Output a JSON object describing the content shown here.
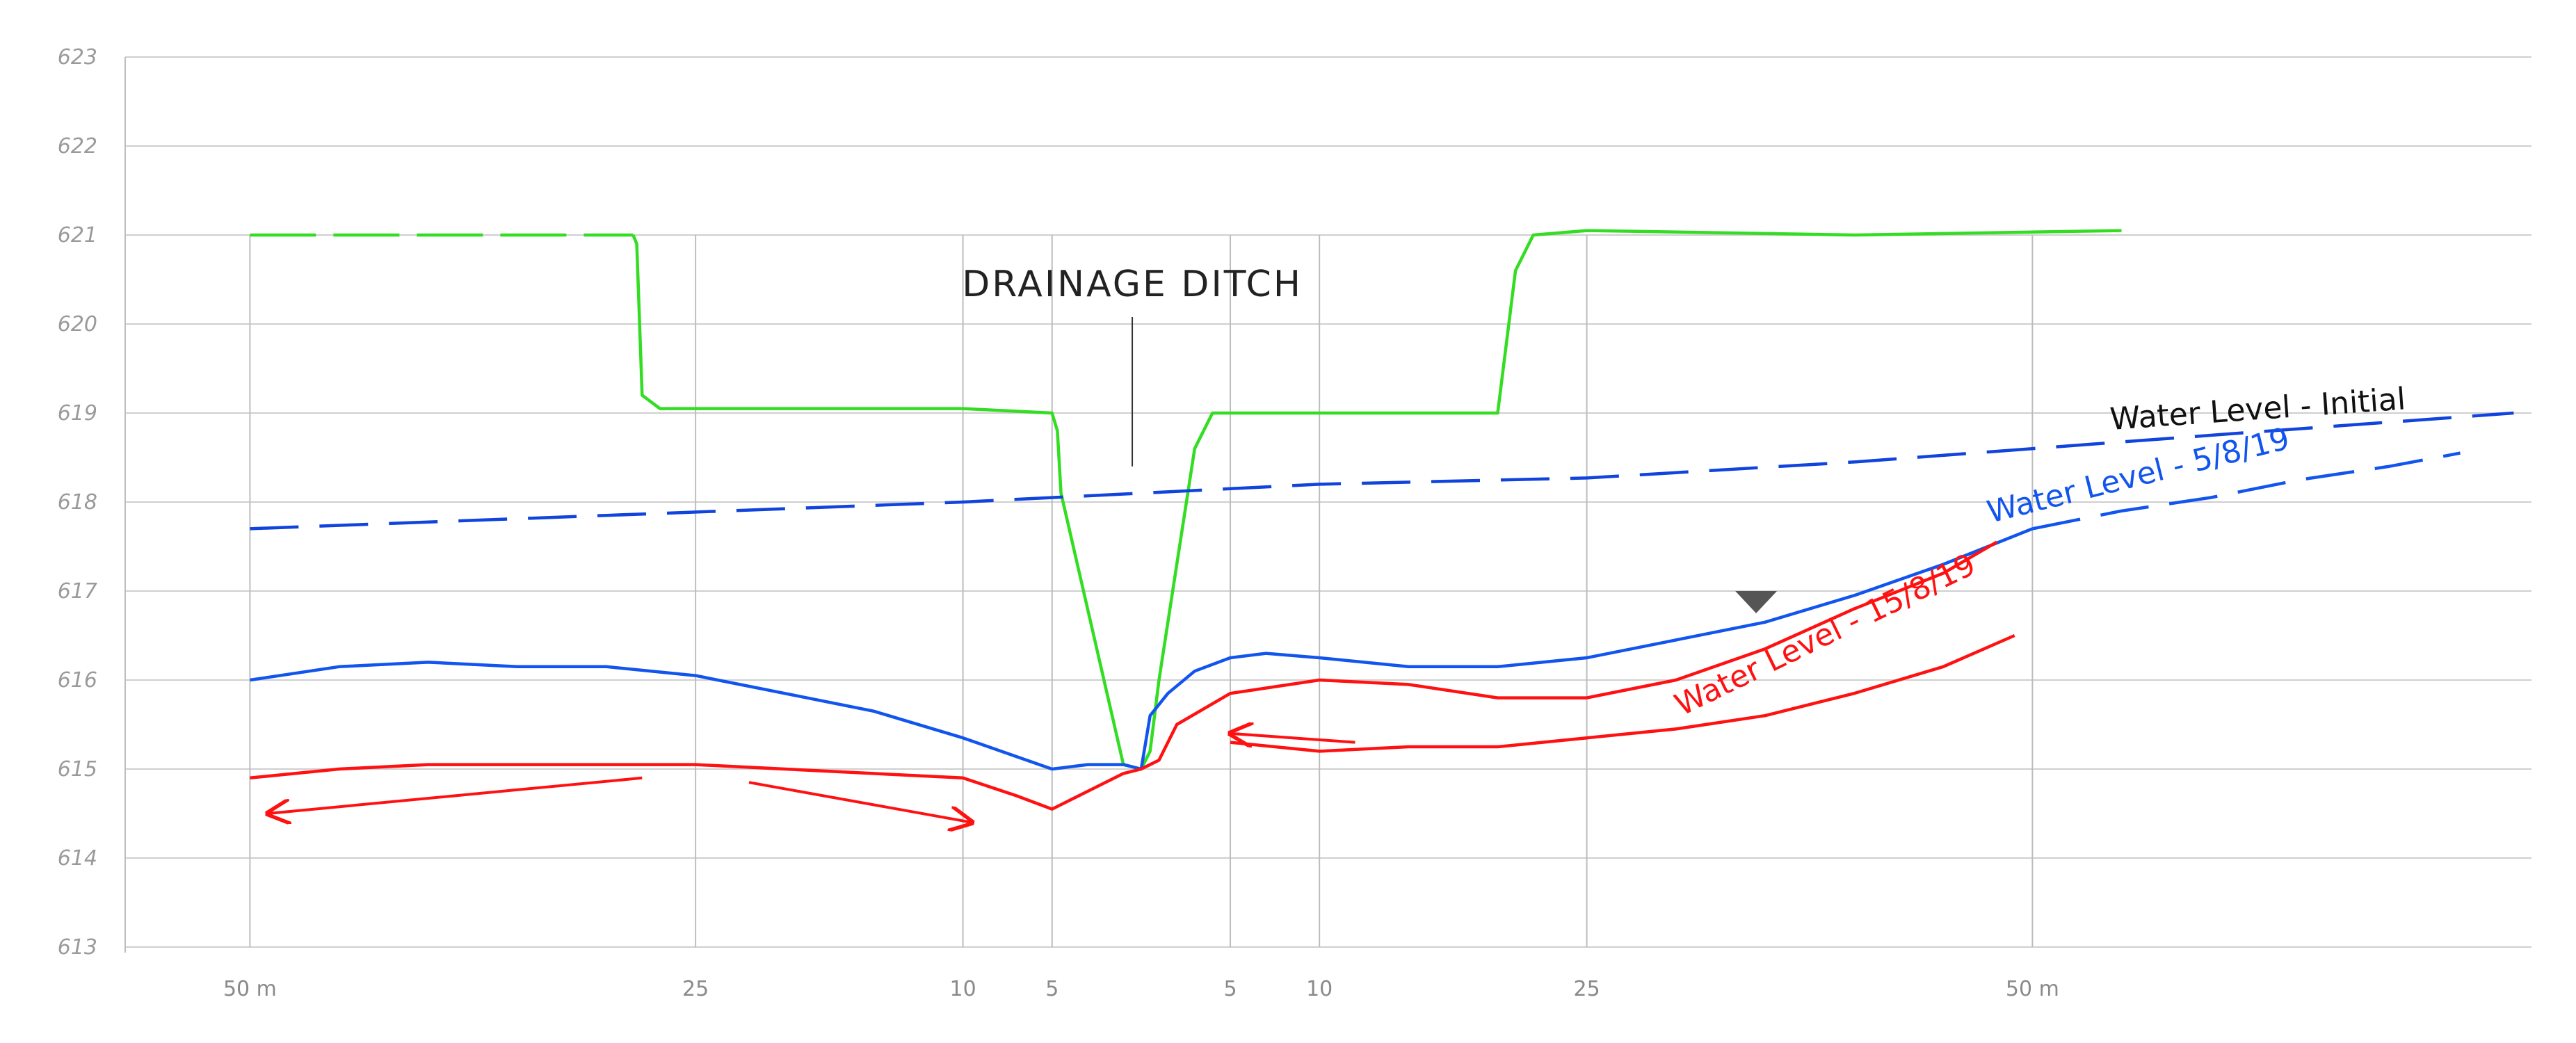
{
  "chart_data": {
    "type": "line",
    "title": "",
    "ylim": [
      613,
      623
    ],
    "y_ticks": [
      "613",
      "614",
      "615",
      "616",
      "617",
      "618",
      "619",
      "620",
      "621",
      "622",
      "623"
    ],
    "x_ticks": [
      {
        "label": "50 m",
        "pos": -50
      },
      {
        "label": "25",
        "pos": -25
      },
      {
        "label": "10",
        "pos": -10
      },
      {
        "label": "5",
        "pos": -5
      },
      {
        "label": "5",
        "pos": 5
      },
      {
        "label": "10",
        "pos": 10
      },
      {
        "label": "25",
        "pos": 25
      },
      {
        "label": "50 m",
        "pos": 50
      }
    ],
    "xlim": [
      -57,
      78
    ],
    "grid": true,
    "ditch_annotation": {
      "label": "DRAINAGE DITCH",
      "x": -0.5,
      "y_top": 620.0,
      "y_bottom": 618.4
    },
    "colors": {
      "ground": "#33dd22",
      "water_initial": "#1144dd",
      "water_5_8": "#1155ee",
      "water_15_8": "#ff1111",
      "marker": "#555555"
    },
    "series": [
      {
        "key": "ground",
        "color": "#33dd22",
        "dash": "long-dash-then-solid",
        "x": [
          -50,
          -28.5,
          -28.3,
          -28,
          -27,
          -20,
          -10,
          -5,
          -4.7,
          -4.5,
          -1,
          0,
          0.5,
          1,
          2,
          3,
          4,
          10,
          20,
          21,
          22,
          25,
          40,
          55
        ],
        "y": [
          621.0,
          621.0,
          620.9,
          619.2,
          619.05,
          619.05,
          619.05,
          619.0,
          618.8,
          618.1,
          615.05,
          615.0,
          615.2,
          616.0,
          617.3,
          618.6,
          619.0,
          619.0,
          619.0,
          620.6,
          621.0,
          621.05,
          621.0,
          621.05
        ]
      },
      {
        "key": "water_initial",
        "color": "#1144dd",
        "dash": "dashed",
        "label": "Water Level - Initial",
        "x": [
          -50,
          -30,
          -10,
          0,
          10,
          25,
          40,
          60,
          77
        ],
        "y": [
          617.7,
          617.85,
          618.0,
          618.1,
          618.2,
          618.27,
          618.45,
          618.75,
          619.0
        ]
      },
      {
        "key": "water_5_8",
        "color": "#1155ee",
        "dash": "solid-then-dashed",
        "label": "Water Level - 5/8/19",
        "x": [
          -50,
          -45,
          -40,
          -35,
          -30,
          -25,
          -20,
          -15,
          -10,
          -5,
          -3,
          -1,
          0,
          0.5,
          1.5,
          3,
          5,
          7,
          10,
          15,
          20,
          25,
          30,
          35,
          40,
          45,
          50,
          55,
          60,
          65,
          70,
          74
        ],
        "y": [
          616.0,
          616.15,
          616.2,
          616.15,
          616.15,
          616.05,
          615.85,
          615.65,
          615.35,
          615.0,
          615.05,
          615.05,
          615.0,
          615.6,
          615.85,
          616.1,
          616.25,
          616.3,
          616.25,
          616.15,
          616.15,
          616.25,
          616.45,
          616.65,
          616.95,
          617.3,
          617.7,
          617.9,
          618.05,
          618.25,
          618.4,
          618.55
        ]
      },
      {
        "key": "water_15_8",
        "color": "#ff1111",
        "dash": "solid",
        "label": "Water Level - 15/8/19",
        "x": [
          -50,
          -45,
          -40,
          -30,
          -25,
          -20,
          -10,
          -7,
          -5,
          -3,
          -1,
          0,
          1,
          2,
          5,
          10,
          15,
          20,
          25,
          30,
          35,
          40,
          45,
          48
        ],
        "y": [
          614.9,
          615.0,
          615.05,
          615.05,
          615.05,
          615.0,
          614.9,
          614.7,
          614.55,
          614.75,
          614.95,
          615.0,
          615.1,
          615.5,
          615.85,
          616.0,
          615.95,
          615.8,
          615.8,
          616.0,
          616.35,
          616.8,
          617.2,
          617.55
        ]
      },
      {
        "key": "water_15_8_lower",
        "color": "#ff1111",
        "dash": "solid",
        "x": [
          5,
          10,
          15,
          20,
          25,
          30,
          35,
          40,
          45,
          49
        ],
        "y": [
          615.3,
          615.2,
          615.25,
          615.25,
          615.35,
          615.45,
          615.6,
          615.85,
          616.15,
          616.5
        ]
      }
    ],
    "arrows": [
      {
        "from": [
          -28,
          614.9
        ],
        "to": [
          -49,
          614.5
        ]
      },
      {
        "from": [
          -22,
          614.85
        ],
        "to": [
          -9.5,
          614.4
        ]
      },
      {
        "from": [
          12,
          615.3
        ],
        "to": [
          5,
          615.4
        ]
      }
    ],
    "marker": {
      "x": 34.5,
      "y": 616.75
    }
  }
}
